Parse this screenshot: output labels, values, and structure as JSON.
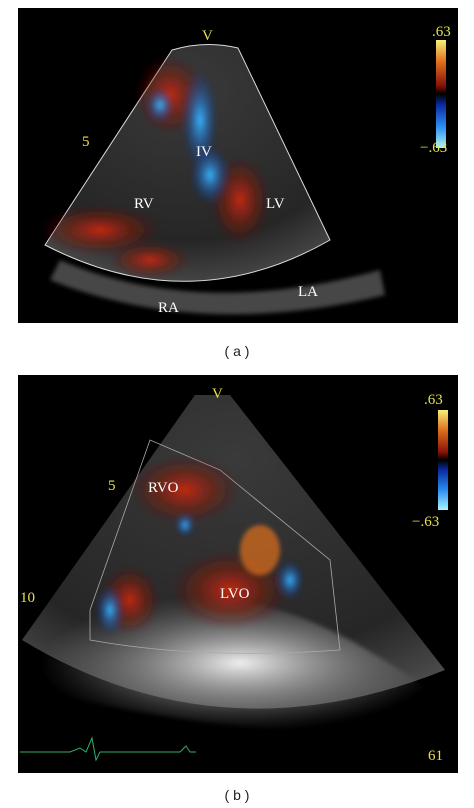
{
  "panels": [
    {
      "caption": "( a )",
      "scale_top": ".63",
      "scale_bottom": "−.63",
      "depth_marks": [
        "5"
      ],
      "labels": [
        "V",
        "RV",
        "IV",
        "LV",
        "RA",
        "LA"
      ]
    },
    {
      "caption": "( b )",
      "scale_top": ".63",
      "scale_bottom": "−.63",
      "depth_marks": [
        "5",
        "10"
      ],
      "labels": [
        "V",
        "RVO",
        "LVO"
      ],
      "frame_rate": "61"
    }
  ]
}
